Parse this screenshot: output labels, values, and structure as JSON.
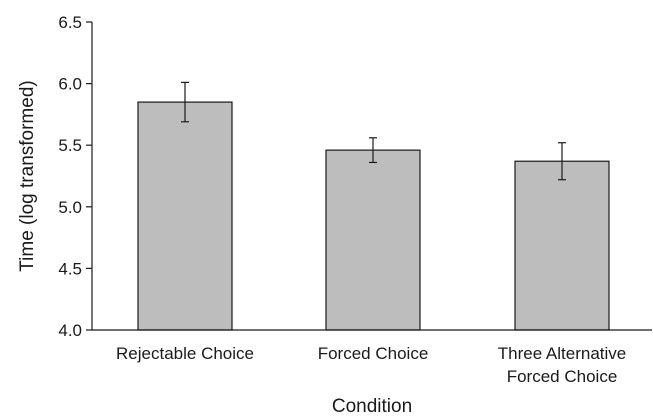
{
  "chart_data": {
    "type": "bar",
    "title": "",
    "xlabel": "Condition",
    "ylabel": "Time (log transformed)",
    "ylim": [
      4.0,
      6.5
    ],
    "yticks": [
      "4.0",
      "4.5",
      "5.0",
      "5.5",
      "6.0",
      "6.5"
    ],
    "categories": [
      [
        "Rejectable Choice"
      ],
      [
        "Forced Choice"
      ],
      [
        "Three Alternative",
        "Forced Choice"
      ]
    ],
    "values": [
      5.85,
      5.46,
      5.37
    ],
    "error_low": [
      5.69,
      5.36,
      5.22
    ],
    "error_high": [
      6.01,
      5.56,
      5.52
    ],
    "grid": false,
    "legend": "none",
    "colors": {
      "bar_fill": "#bdbdbd",
      "bar_stroke": "#1a1a1a",
      "axis": "#1a1a1a"
    }
  }
}
